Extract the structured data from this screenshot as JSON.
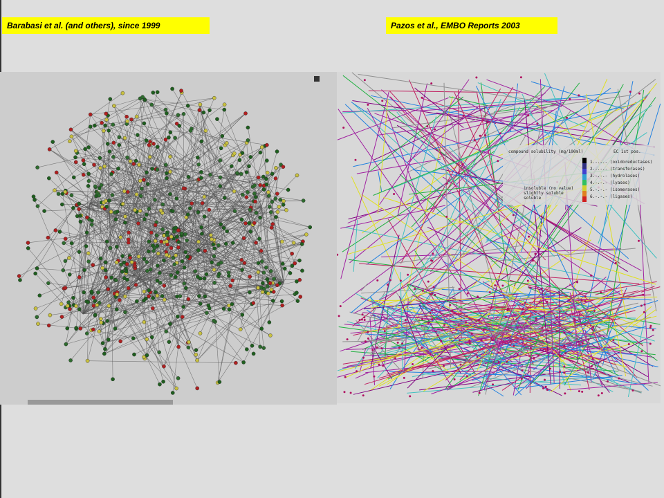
{
  "labels": {
    "left": "Barabasi et al. (and others), since 1999",
    "right": "Pazos et al., EMBO Reports 2003"
  },
  "legend": {
    "title": "compound solubility (mg/100ml)",
    "ec_title": "EC 1st pos.",
    "classes": [
      "1.-.-.- (oxidoreductases)",
      "2.-.-.- (transferases)",
      "3.-.-.- (hydrolases)",
      "4.-.-.- (lyases)",
      "5.-.-.- (isomerases)",
      "6.-.-.- (ligases)"
    ],
    "solubility": [
      "insoluble (no value)",
      "slightly soluble",
      "soluble"
    ]
  }
}
